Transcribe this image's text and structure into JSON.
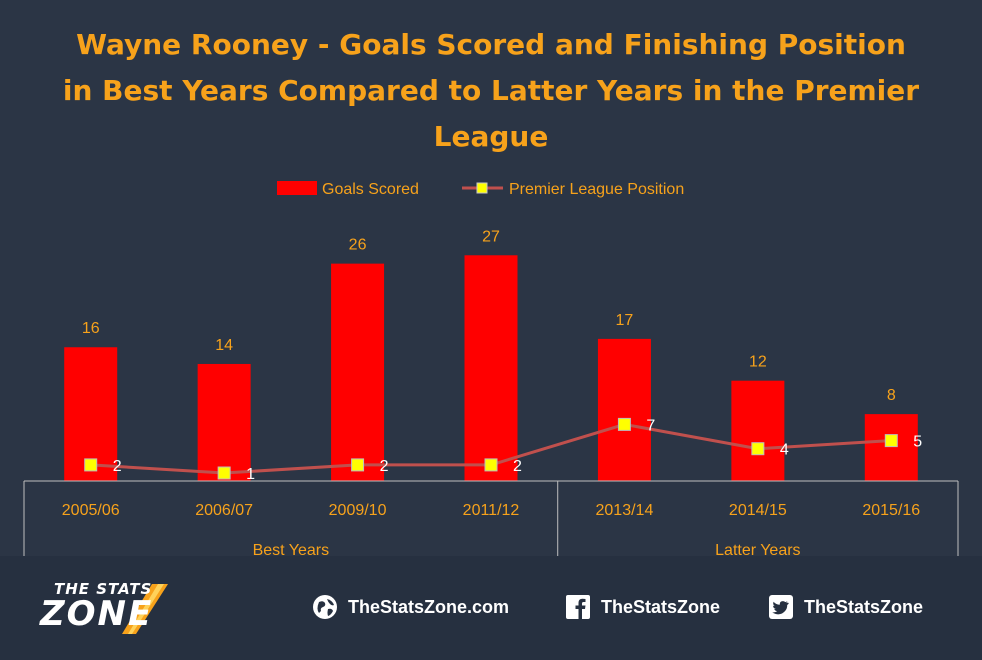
{
  "chart_data": {
    "type": "bar",
    "title": "Wayne Rooney - Goals Scored and Finishing Position in Best Years Compared to Latter Years in the Premier League",
    "categories": [
      "2005/06",
      "2006/07",
      "2009/10",
      "2011/12",
      "2013/14",
      "2014/15",
      "2015/16"
    ],
    "groups": [
      {
        "label": "Best Years",
        "categories": [
          "2005/06",
          "2006/07",
          "2009/10",
          "2011/12"
        ]
      },
      {
        "label": "Latter Years",
        "categories": [
          "2013/14",
          "2014/15",
          "2015/16"
        ]
      }
    ],
    "series": [
      {
        "name": "Goals Scored",
        "type": "bar",
        "color": "#ff0000",
        "values": [
          16,
          14,
          26,
          27,
          17,
          12,
          8
        ]
      },
      {
        "name": "Premier League Position",
        "type": "line",
        "color": "#c0504d",
        "marker_color": "#ffff00",
        "values": [
          2,
          1,
          2,
          2,
          7,
          4,
          5
        ]
      }
    ],
    "legend_position": "top",
    "grid": false,
    "colors": {
      "title": "#f7a21b",
      "data_labels": "#f7a21b",
      "position_labels": "#ffffff",
      "axis_text": "#f7a21b",
      "background": "#2b3545"
    }
  },
  "footer": {
    "logo_line1": "THE STATS",
    "logo_line2": "ZONE",
    "website": "TheStatsZone.com",
    "facebook": "TheStatsZone",
    "twitter": "TheStatsZone",
    "icons": [
      "globe-icon",
      "facebook-icon",
      "twitter-icon"
    ]
  }
}
